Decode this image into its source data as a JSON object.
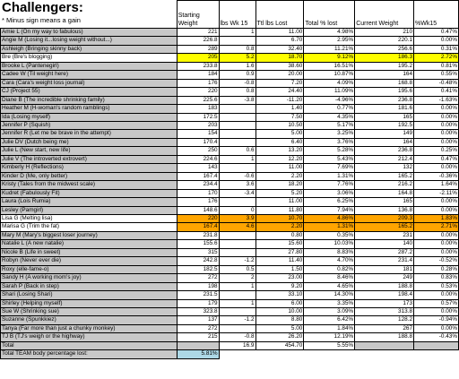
{
  "header": {
    "title": "Challengers:",
    "subtitle": "* Minus sign means a gain"
  },
  "columns": [
    "Starting Weight",
    "lbs Wk 15",
    "Ttl lbs Lost",
    "Total % lost",
    "Current Weight",
    "%Wk15"
  ],
  "rows": [
    {
      "name": "Amie L (On my way to fabulous)",
      "start": "221",
      "wk": "1",
      "ttl": "11.00",
      "pct": "4.98%",
      "cur": "210",
      "wkpct": "0.47%",
      "hl": ""
    },
    {
      "name": "Angie M (Losing it...losing weight without...)",
      "start": "226.8",
      "wk": "",
      "ttl": "6.70",
      "pct": "2.95%",
      "cur": "220.1",
      "wkpct": "0.00%",
      "hl": ""
    },
    {
      "name": "Ashleigh (Bringing skinny back)",
      "start": "289",
      "wk": "0.8",
      "ttl": "32.40",
      "pct": "11.21%",
      "cur": "256.6",
      "wkpct": "0.31%",
      "hl": ""
    },
    {
      "name": "Bre (Bre's blogging)",
      "start": "205",
      "wk": "5.2",
      "ttl": "18.70",
      "pct": "9.12%",
      "cur": "186.3",
      "wkpct": "2.72%",
      "hl": "yellow"
    },
    {
      "name": "Brooke L (Pantenegirl)",
      "start": "233.8",
      "wk": "1.6",
      "ttl": "38.60",
      "pct": "16.51%",
      "cur": "195.2",
      "wkpct": "0.81%",
      "hl": ""
    },
    {
      "name": "Cadee W (Til weight here)",
      "start": "184",
      "wk": "0.9",
      "ttl": "20.00",
      "pct": "10.87%",
      "cur": "164",
      "wkpct": "0.55%",
      "hl": ""
    },
    {
      "name": "Cara (Cara's weight loss journal)",
      "start": "176",
      "wk": "-0.8",
      "ttl": "7.20",
      "pct": "4.09%",
      "cur": "168.8",
      "wkpct": "-0.48%",
      "hl": ""
    },
    {
      "name": "CJ (Project 55)",
      "start": "220",
      "wk": "0.8",
      "ttl": "24.40",
      "pct": "11.09%",
      "cur": "195.6",
      "wkpct": "0.41%",
      "hl": ""
    },
    {
      "name": "Diane B (The incredible shrinking family)",
      "start": "225.6",
      "wk": "-3.8",
      "ttl": "-11.20",
      "pct": "-4.96%",
      "cur": "236.8",
      "wkpct": "-1.63%",
      "hl": ""
    },
    {
      "name": "Heather M (H-woman's random ramblings)",
      "start": "183",
      "wk": "",
      "ttl": "1.40",
      "pct": "0.77%",
      "cur": "181.6",
      "wkpct": "0.00%",
      "hl": ""
    },
    {
      "name": "Ida (Losing myself)",
      "start": "172.5",
      "wk": "",
      "ttl": "7.50",
      "pct": "4.35%",
      "cur": "165",
      "wkpct": "0.00%",
      "hl": ""
    },
    {
      "name": "Jennifer P (Squish)",
      "start": "203",
      "wk": "",
      "ttl": "10.50",
      "pct": "5.17%",
      "cur": "192.5",
      "wkpct": "0.00%",
      "hl": ""
    },
    {
      "name": "Jennifer R (Let me be brave in the attempt)",
      "start": "154",
      "wk": "",
      "ttl": "5.00",
      "pct": "3.25%",
      "cur": "149",
      "wkpct": "0.00%",
      "hl": ""
    },
    {
      "name": "Julie DV (Dutch being me)",
      "start": "170.4",
      "wk": "",
      "ttl": "6.40",
      "pct": "3.76%",
      "cur": "164",
      "wkpct": "0.00%",
      "hl": ""
    },
    {
      "name": "Julie L (New start, new life)",
      "start": "250",
      "wk": "0.6",
      "ttl": "13.20",
      "pct": "5.28%",
      "cur": "236.8",
      "wkpct": "0.25%",
      "hl": ""
    },
    {
      "name": "Julie V (The introverted extrovert)",
      "start": "224.6",
      "wk": "1",
      "ttl": "12.20",
      "pct": "5.43%",
      "cur": "212.4",
      "wkpct": "0.47%",
      "hl": ""
    },
    {
      "name": "Kimberly H (Reflections)",
      "start": "143",
      "wk": "",
      "ttl": "11.00",
      "pct": "7.69%",
      "cur": "132",
      "wkpct": "0.00%",
      "hl": ""
    },
    {
      "name": "Kinder D (Me, only better)",
      "start": "167.4",
      "wk": "-0.6",
      "ttl": "2.20",
      "pct": "1.31%",
      "cur": "165.2",
      "wkpct": "-0.36%",
      "hl": ""
    },
    {
      "name": "Kristy (Tales from the midwest scale)",
      "start": "234.4",
      "wk": "3.6",
      "ttl": "18.20",
      "pct": "7.76%",
      "cur": "216.2",
      "wkpct": "1.64%",
      "hl": ""
    },
    {
      "name": "Kudret (Fabulously Fit)",
      "start": "170",
      "wk": "-3.4",
      "ttl": "5.20",
      "pct": "3.06%",
      "cur": "164.8",
      "wkpct": "-2.11%",
      "hl": ""
    },
    {
      "name": "Laura (Lois Rumia)",
      "start": "176",
      "wk": "",
      "ttl": "11.00",
      "pct": "6.25%",
      "cur": "165",
      "wkpct": "0.00%",
      "hl": ""
    },
    {
      "name": "Lesley (Pamgirl)",
      "start": "148.6",
      "wk": "0",
      "ttl": "11.80",
      "pct": "7.94%",
      "cur": "136.8",
      "wkpct": "0.00%",
      "hl": ""
    },
    {
      "name": "Lisa G (Melting lisa)",
      "start": "220",
      "wk": "3.9",
      "ttl": "10.70",
      "pct": "4.86%",
      "cur": "209.3",
      "wkpct": "1.83%",
      "hl": "orange"
    },
    {
      "name": "Marisa G (Trim the fat)",
      "start": "167.4",
      "wk": "4.6",
      "ttl": "2.20",
      "pct": "1.31%",
      "cur": "165.2",
      "wkpct": "2.71%",
      "hl": "orange"
    },
    {
      "name": "Mary M (Mary's biggest loser journey)",
      "start": "231.8",
      "wk": "",
      "ttl": "0.80",
      "pct": "0.35%",
      "cur": "231",
      "wkpct": "0.00%",
      "hl": ""
    },
    {
      "name": "Natalie L (A new natalie)",
      "start": "155.6",
      "wk": "",
      "ttl": "15.60",
      "pct": "10.03%",
      "cur": "140",
      "wkpct": "0.00%",
      "hl": ""
    },
    {
      "name": "Nicole B (Life in sweet)",
      "start": "315",
      "wk": "",
      "ttl": "27.80",
      "pct": "8.83%",
      "cur": "287.2",
      "wkpct": "0.00%",
      "hl": ""
    },
    {
      "name": "Robyn (Never ever die)",
      "start": "242.8",
      "wk": "-1.2",
      "ttl": "11.40",
      "pct": "4.70%",
      "cur": "231.4",
      "wkpct": "-0.52%",
      "hl": ""
    },
    {
      "name": "Roxy (elle-fame-o)",
      "start": "182.5",
      "wk": "0.5",
      "ttl": "1.50",
      "pct": "0.82%",
      "cur": "181",
      "wkpct": "0.28%",
      "hl": ""
    },
    {
      "name": "Sandy H (A working mom's joy)",
      "start": "272",
      "wk": "2",
      "ttl": "23.00",
      "pct": "8.46%",
      "cur": "249",
      "wkpct": "0.83%",
      "hl": ""
    },
    {
      "name": "Sarah P (Back in step)",
      "start": "198",
      "wk": "1",
      "ttl": "9.20",
      "pct": "4.65%",
      "cur": "188.8",
      "wkpct": "0.53%",
      "hl": ""
    },
    {
      "name": "Shari (Losing Shari)",
      "start": "231.5",
      "wk": "",
      "ttl": "33.10",
      "pct": "14.30%",
      "cur": "198.4",
      "wkpct": "0.00%",
      "hl": ""
    },
    {
      "name": "Shirley (Helping myself)",
      "start": "179",
      "wk": "1",
      "ttl": "6.00",
      "pct": "3.35%",
      "cur": "173",
      "wkpct": "0.57%",
      "hl": ""
    },
    {
      "name": "Sue W (Shrinking sue)",
      "start": "323.8",
      "wk": "",
      "ttl": "10.00",
      "pct": "3.09%",
      "cur": "313.8",
      "wkpct": "0.00%",
      "hl": ""
    },
    {
      "name": "Suzanne (Spunkkiez)",
      "start": "137",
      "wk": "-1.2",
      "ttl": "8.80",
      "pct": "6.42%",
      "cur": "128.2",
      "wkpct": "-0.94%",
      "hl": ""
    },
    {
      "name": "Tanya (Far more than just a chunky monkey)",
      "start": "272",
      "wk": "",
      "ttl": "5.00",
      "pct": "1.84%",
      "cur": "267",
      "wkpct": "0.00%",
      "hl": ""
    },
    {
      "name": "TJ B (TJ's weigh or the highway)",
      "start": "215",
      "wk": "-0.8",
      "ttl": "26.20",
      "pct": "12.19%",
      "cur": "188.8",
      "wkpct": "-0.43%",
      "hl": ""
    }
  ],
  "total": {
    "label": "Total",
    "wk": "16.9",
    "ttl": "454.70",
    "pct": "5.55%"
  },
  "team": {
    "label": "Total TEAM body percentage lost:",
    "value": "5.81%"
  }
}
